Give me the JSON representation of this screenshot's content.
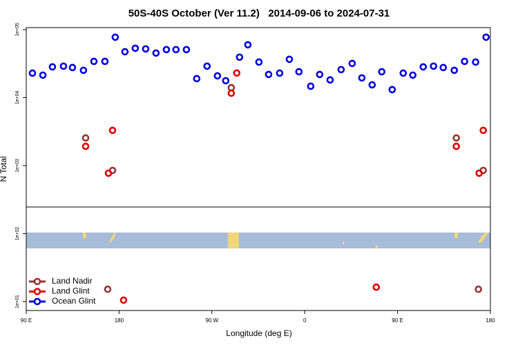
{
  "chart_data": {
    "type": "scatter",
    "title": "50S-40S October (Ver 11.2)   2014-09-06 to 2024-07-31",
    "x_label": "Longitude (deg E)",
    "y_label": "N Total",
    "log_y": true,
    "legend": "bottom-left",
    "xlim": [
      90,
      540
    ],
    "ylim": [
      7.4,
      107000
    ],
    "xticks": [
      {
        "value": 90,
        "label": "90 E"
      },
      180,
      {
        "value": 270,
        "label": "90 W"
      },
      {
        "value": 360,
        "label": "0"
      },
      {
        "value": 450,
        "label": "90 E"
      },
      {
        "value": 540,
        "label": "180"
      }
    ],
    "yticks": [
      {
        "value": 10,
        "label": "1e+01"
      },
      {
        "value": 100,
        "label": "1e+02"
      },
      {
        "value": 1000,
        "label": "1e+03"
      },
      {
        "value": 10000,
        "label": "1e+04"
      },
      {
        "value": 100000,
        "label": "1e+05"
      }
    ],
    "series": [
      {
        "name": "Land Nadir",
        "color": "#993333",
        "x": [
          147.6,
          173.7,
          288.8,
          507,
          533.1,
          169,
          528.4
        ],
        "values": [
          2550,
          849,
          14000,
          2550,
          849,
          15.2,
          15.2
        ]
      },
      {
        "name": "Land Glint",
        "color": "#e00000",
        "x": [
          147.6,
          173.7,
          169.7,
          294.1,
          288.8,
          507,
          533.1,
          529.1,
          184.4,
          429.4
        ],
        "values": [
          1920,
          3300,
          773,
          23000,
          11600,
          1920,
          3300,
          773,
          10.5,
          16.3
        ]
      },
      {
        "name": "Ocean Glint",
        "color": "#0000e0",
        "x": [
          96,
          106.1,
          115.4,
          126.1,
          134.8,
          145.5,
          155.6,
          166.3,
          176.3,
          185.7,
          195.7,
          205.8,
          215.8,
          225.9,
          235.2,
          245.3,
          255.3,
          265.3,
          275.4,
          283.4,
          296.8,
          304.9,
          315.6,
          325,
          335.7,
          345.1,
          354.4,
          365.8,
          374.5,
          384.6,
          395.3,
          406,
          415.4,
          425.4,
          434.7,
          444.8,
          455.5,
          464.8,
          474.9,
          484.9,
          494.3,
          505,
          515,
          525.7,
          535.8
        ],
        "values": [
          22900,
          21400,
          28300,
          29000,
          27700,
          25200,
          34100,
          34100,
          77300,
          47300,
          53200,
          52000,
          45200,
          50800,
          50800,
          50800,
          19000,
          29000,
          20900,
          17700,
          39300,
          59800,
          33300,
          21900,
          22900,
          36600,
          24000,
          14700,
          21900,
          18200,
          25800,
          31800,
          19500,
          15400,
          24000,
          13100,
          22900,
          21400,
          28300,
          29000,
          27700,
          25200,
          34100,
          33300,
          77300
        ]
      }
    ]
  }
}
